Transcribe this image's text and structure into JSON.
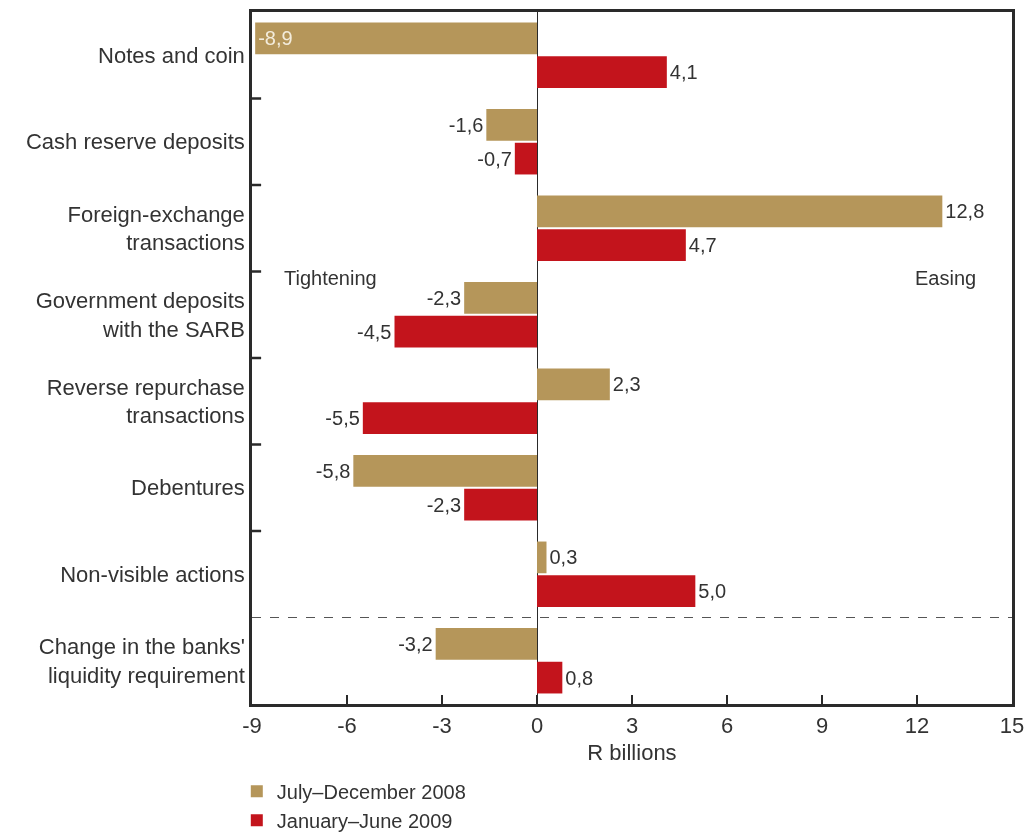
{
  "chart_data": {
    "type": "bar",
    "orientation": "horizontal",
    "categories": [
      "Notes and coin",
      "Cash reserve deposits",
      "Foreign-exchange\ntransactions",
      "Government deposits\nwith the SARB",
      "Reverse repurchase\ntransactions",
      "Debentures",
      "Non-visible actions",
      "Change in the banks'\nliquidity requirement"
    ],
    "series": [
      {
        "name": "July–December 2008",
        "color": "#b5965a",
        "values": [
          -8.9,
          -1.6,
          12.8,
          -2.3,
          2.3,
          -5.8,
          0.3,
          -3.2
        ],
        "value_labels": [
          "-8,9",
          "-1,6",
          "12,8",
          "-2,3",
          "2,3",
          "-5,8",
          "0,3",
          "-3,2"
        ]
      },
      {
        "name": "January–June 2009",
        "color": "#c3141c",
        "values": [
          4.1,
          -0.7,
          4.7,
          -4.5,
          -5.5,
          -2.3,
          5.0,
          0.8
        ],
        "value_labels": [
          "4,1",
          "-0,7",
          "4,7",
          "-4,5",
          "-5,5",
          "-2,3",
          "5,0",
          "0,8"
        ]
      }
    ],
    "xlim": [
      -9,
      15
    ],
    "xticks": [
      -9,
      -6,
      -3,
      0,
      3,
      6,
      9,
      12,
      15
    ],
    "xlabel": "R billions",
    "annotations": [
      "Tightening",
      "Easing"
    ],
    "ref_lines": [
      {
        "axis": "y",
        "value": "Change in the banks'\nliquidity requirement",
        "line_style": "dashed",
        "color": "#555555"
      }
    ],
    "legend": "bottom left"
  }
}
